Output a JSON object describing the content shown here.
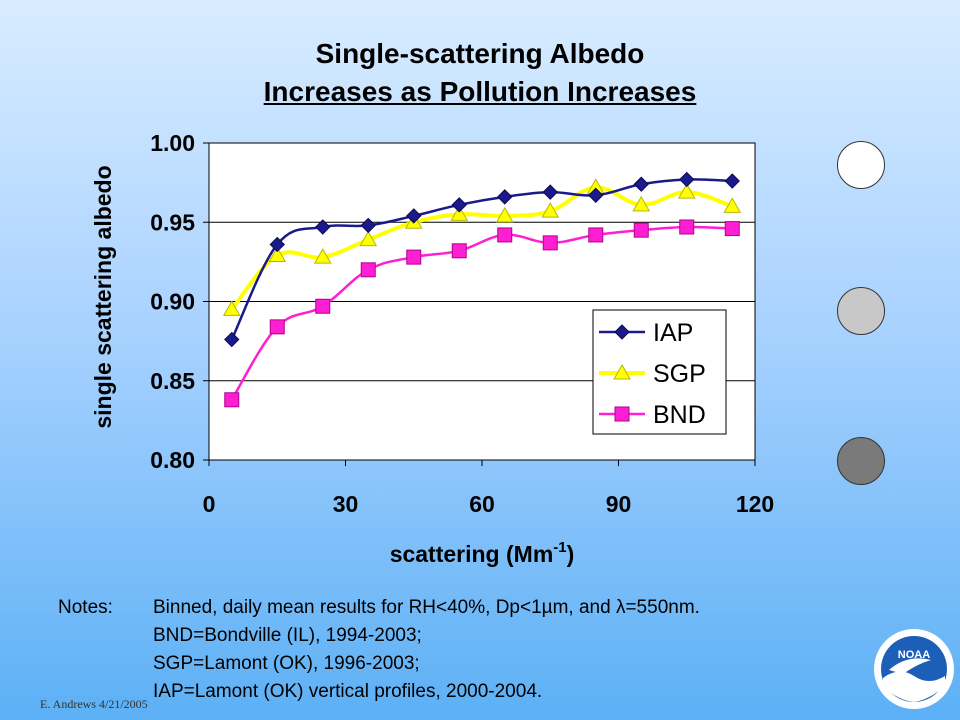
{
  "title_line1": "Single-scattering Albedo",
  "title_line2": "Increases as Pollution Increases",
  "notes": {
    "label": "Notes:",
    "lines": [
      "Binned, daily mean results for RH<40%, Dp<1µm, and λ=550nm.",
      "BND=Bondville (IL), 1994-2003;",
      "SGP=Lamont (OK), 1996-2003;",
      "IAP=Lamont (OK) vertical profiles, 2000-2004."
    ]
  },
  "footer": "E. Andrews  4/21/2005",
  "logo_text": "NOAA",
  "circles": [
    {
      "name": "white",
      "color": "#ffffff"
    },
    {
      "name": "light-gray",
      "color": "#c8c8c8"
    },
    {
      "name": "dark-gray",
      "color": "#7a7a7a"
    }
  ],
  "chart_data": {
    "type": "line",
    "xlabel": "scattering (Mm",
    "xlabel_sup": "-1",
    "xlabel_end": ")",
    "ylabel": "single scattering albedo",
    "xlim": [
      0,
      120
    ],
    "ylim": [
      0.8,
      1.0
    ],
    "xticks": [
      "0",
      "30",
      "60",
      "90",
      "120"
    ],
    "xtick_values": [
      0,
      30,
      60,
      90,
      120
    ],
    "yticks": [
      "0.80",
      "0.85",
      "0.90",
      "0.95",
      "1.00"
    ],
    "ytick_values": [
      0.8,
      0.85,
      0.9,
      0.95,
      1.0
    ],
    "grid": "horizontal",
    "legend_position": "bottom-right",
    "x": [
      5,
      15,
      25,
      35,
      45,
      55,
      65,
      75,
      85,
      95,
      105,
      115
    ],
    "series": [
      {
        "name": "IAP",
        "color": "#1a1a8c",
        "marker": "diamond",
        "values": [
          0.876,
          0.936,
          0.947,
          0.948,
          0.954,
          0.961,
          0.966,
          0.969,
          0.967,
          0.974,
          0.977,
          0.976
        ]
      },
      {
        "name": "SGP",
        "color": "#ffff00",
        "marker": "triangle",
        "values": [
          0.895,
          0.929,
          0.928,
          0.939,
          0.95,
          0.955,
          0.954,
          0.957,
          0.972,
          0.961,
          0.969,
          0.96
        ]
      },
      {
        "name": "BND",
        "color": "#ff1fd2",
        "marker": "square",
        "values": [
          0.838,
          0.884,
          0.897,
          0.92,
          0.928,
          0.932,
          0.942,
          0.937,
          0.942,
          0.945,
          0.947,
          0.946
        ]
      }
    ]
  }
}
